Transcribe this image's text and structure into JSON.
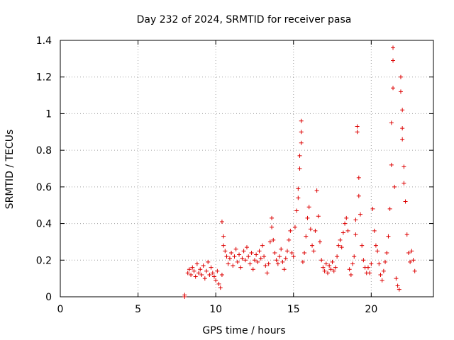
{
  "chart_data": {
    "type": "scatter",
    "title": "Day 232 of 2024, SRMTID for receiver pasa",
    "xlabel": "GPS time / hours",
    "ylabel": "SRMTID / TECUs",
    "xlim": [
      0,
      24
    ],
    "ylim": [
      0,
      1.4
    ],
    "x_ticks": [
      0,
      5,
      10,
      15,
      20
    ],
    "x_tick_labels": [
      "0",
      "5",
      "10",
      "15",
      "20"
    ],
    "y_ticks": [
      0,
      0.2,
      0.4,
      0.6,
      0.8,
      1.0,
      1.2,
      1.4
    ],
    "y_tick_labels": [
      "0",
      "0.2",
      "0.4",
      "0.6",
      "0.8",
      "1",
      "1.2",
      "1.4"
    ],
    "grid": true,
    "marker": "+",
    "color": "#dd0000",
    "series": [
      {
        "name": "SRMTID",
        "points": [
          [
            8.0,
            0.0
          ],
          [
            8.0,
            0.01
          ],
          [
            8.2,
            0.13
          ],
          [
            8.3,
            0.15
          ],
          [
            8.4,
            0.12
          ],
          [
            8.5,
            0.16
          ],
          [
            8.6,
            0.14
          ],
          [
            8.7,
            0.11
          ],
          [
            8.8,
            0.18
          ],
          [
            8.9,
            0.13
          ],
          [
            9.0,
            0.15
          ],
          [
            9.1,
            0.12
          ],
          [
            9.2,
            0.17
          ],
          [
            9.3,
            0.1
          ],
          [
            9.4,
            0.14
          ],
          [
            9.5,
            0.19
          ],
          [
            9.6,
            0.12
          ],
          [
            9.7,
            0.16
          ],
          [
            9.8,
            0.13
          ],
          [
            9.9,
            0.11
          ],
          [
            10.0,
            0.09
          ],
          [
            10.1,
            0.14
          ],
          [
            10.2,
            0.07
          ],
          [
            10.3,
            0.05
          ],
          [
            10.4,
            0.12
          ],
          [
            10.4,
            0.41
          ],
          [
            10.5,
            0.33
          ],
          [
            10.5,
            0.28
          ],
          [
            10.6,
            0.25
          ],
          [
            10.7,
            0.22
          ],
          [
            10.8,
            0.18
          ],
          [
            10.9,
            0.21
          ],
          [
            11.0,
            0.24
          ],
          [
            11.1,
            0.17
          ],
          [
            11.2,
            0.22
          ],
          [
            11.3,
            0.26
          ],
          [
            11.4,
            0.19
          ],
          [
            11.5,
            0.23
          ],
          [
            11.6,
            0.16
          ],
          [
            11.7,
            0.21
          ],
          [
            11.8,
            0.25
          ],
          [
            11.9,
            0.2
          ],
          [
            12.0,
            0.27
          ],
          [
            12.1,
            0.22
          ],
          [
            12.2,
            0.18
          ],
          [
            12.3,
            0.24
          ],
          [
            12.4,
            0.15
          ],
          [
            12.5,
            0.2
          ],
          [
            12.6,
            0.23
          ],
          [
            12.7,
            0.19
          ],
          [
            12.8,
            0.25
          ],
          [
            12.9,
            0.21
          ],
          [
            13.0,
            0.28
          ],
          [
            13.1,
            0.22
          ],
          [
            13.2,
            0.17
          ],
          [
            13.3,
            0.13
          ],
          [
            13.4,
            0.18
          ],
          [
            13.5,
            0.3
          ],
          [
            13.6,
            0.38
          ],
          [
            13.6,
            0.43
          ],
          [
            13.7,
            0.31
          ],
          [
            13.8,
            0.24
          ],
          [
            13.9,
            0.2
          ],
          [
            14.0,
            0.18
          ],
          [
            14.1,
            0.22
          ],
          [
            14.2,
            0.26
          ],
          [
            14.3,
            0.19
          ],
          [
            14.4,
            0.15
          ],
          [
            14.5,
            0.21
          ],
          [
            14.6,
            0.25
          ],
          [
            14.7,
            0.31
          ],
          [
            14.8,
            0.36
          ],
          [
            14.9,
            0.24
          ],
          [
            15.0,
            0.22
          ],
          [
            15.1,
            0.38
          ],
          [
            15.2,
            0.47
          ],
          [
            15.3,
            0.59
          ],
          [
            15.3,
            0.54
          ],
          [
            15.4,
            0.7
          ],
          [
            15.4,
            0.77
          ],
          [
            15.5,
            0.96
          ],
          [
            15.5,
            0.9
          ],
          [
            15.5,
            0.84
          ],
          [
            15.6,
            0.19
          ],
          [
            15.7,
            0.24
          ],
          [
            15.8,
            0.33
          ],
          [
            15.9,
            0.43
          ],
          [
            16.0,
            0.49
          ],
          [
            16.1,
            0.37
          ],
          [
            16.2,
            0.28
          ],
          [
            16.3,
            0.25
          ],
          [
            16.4,
            0.36
          ],
          [
            16.5,
            0.58
          ],
          [
            16.6,
            0.44
          ],
          [
            16.7,
            0.3
          ],
          [
            16.8,
            0.2
          ],
          [
            16.9,
            0.16
          ],
          [
            17.0,
            0.14
          ],
          [
            17.1,
            0.18
          ],
          [
            17.2,
            0.13
          ],
          [
            17.3,
            0.17
          ],
          [
            17.4,
            0.15
          ],
          [
            17.5,
            0.19
          ],
          [
            17.6,
            0.14
          ],
          [
            17.7,
            0.16
          ],
          [
            17.8,
            0.22
          ],
          [
            17.9,
            0.28
          ],
          [
            18.0,
            0.31
          ],
          [
            18.1,
            0.27
          ],
          [
            18.2,
            0.35
          ],
          [
            18.3,
            0.4
          ],
          [
            18.4,
            0.43
          ],
          [
            18.5,
            0.36
          ],
          [
            18.6,
            0.15
          ],
          [
            18.7,
            0.12
          ],
          [
            18.8,
            0.18
          ],
          [
            18.9,
            0.22
          ],
          [
            19.0,
            0.34
          ],
          [
            19.0,
            0.42
          ],
          [
            19.1,
            0.9
          ],
          [
            19.1,
            0.93
          ],
          [
            19.2,
            0.65
          ],
          [
            19.2,
            0.55
          ],
          [
            19.3,
            0.45
          ],
          [
            19.4,
            0.28
          ],
          [
            19.5,
            0.2
          ],
          [
            19.6,
            0.16
          ],
          [
            19.7,
            0.13
          ],
          [
            19.8,
            0.16
          ],
          [
            19.9,
            0.13
          ],
          [
            20.0,
            0.18
          ],
          [
            20.1,
            0.48
          ],
          [
            20.2,
            0.36
          ],
          [
            20.3,
            0.28
          ],
          [
            20.4,
            0.25
          ],
          [
            20.5,
            0.18
          ],
          [
            20.6,
            0.12
          ],
          [
            20.7,
            0.09
          ],
          [
            20.8,
            0.14
          ],
          [
            20.9,
            0.19
          ],
          [
            21.0,
            0.24
          ],
          [
            21.1,
            0.33
          ],
          [
            21.2,
            0.48
          ],
          [
            21.3,
            0.72
          ],
          [
            21.3,
            0.95
          ],
          [
            21.4,
            1.14
          ],
          [
            21.4,
            1.29
          ],
          [
            21.4,
            1.36
          ],
          [
            21.5,
            0.6
          ],
          [
            21.6,
            0.1
          ],
          [
            21.7,
            0.06
          ],
          [
            21.8,
            0.04
          ],
          [
            21.9,
            1.2
          ],
          [
            21.9,
            1.12
          ],
          [
            22.0,
            1.02
          ],
          [
            22.0,
            0.92
          ],
          [
            22.0,
            0.86
          ],
          [
            22.1,
            0.71
          ],
          [
            22.1,
            0.62
          ],
          [
            22.2,
            0.52
          ],
          [
            22.3,
            0.34
          ],
          [
            22.4,
            0.24
          ],
          [
            22.5,
            0.19
          ],
          [
            22.6,
            0.25
          ],
          [
            22.7,
            0.2
          ],
          [
            22.8,
            0.14
          ]
        ]
      }
    ]
  }
}
